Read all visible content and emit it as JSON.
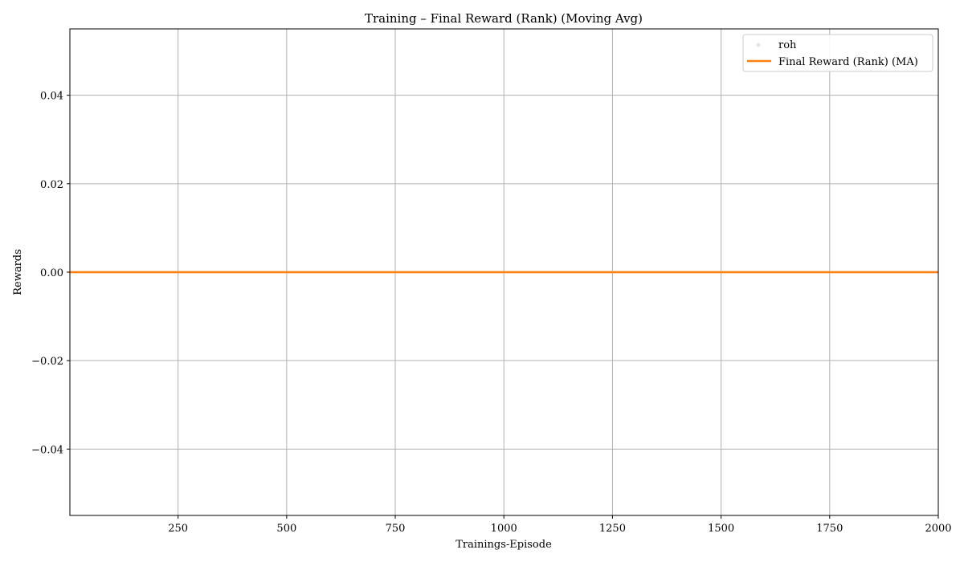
{
  "chart_data": {
    "type": "line",
    "title": "Training – Final Reward (Rank) (Moving Avg)",
    "xlabel": "Trainings-Episode",
    "ylabel": "Rewards",
    "xlim": [
      1,
      2000
    ],
    "ylim": [
      -0.055,
      0.055
    ],
    "x_ticks": [
      250,
      500,
      750,
      1000,
      1250,
      1500,
      1750,
      2000
    ],
    "x_tick_labels": [
      "250",
      "500",
      "750",
      "1000",
      "1250",
      "1500",
      "1750",
      "2000"
    ],
    "y_ticks": [
      -0.04,
      -0.02,
      0.0,
      0.02,
      0.04
    ],
    "y_tick_labels": [
      "−0.04",
      "−0.02",
      "0.00",
      "0.02",
      "0.04"
    ],
    "grid": true,
    "legend_position": "top-right",
    "series": [
      {
        "name": "roh",
        "style": "scatter",
        "color": "#d9e6f2",
        "x": [
          1,
          2000
        ],
        "y": [
          0,
          0
        ]
      },
      {
        "name": "Final Reward (Rank) (MA)",
        "style": "line",
        "color": "#ff7f0e",
        "x": [
          1,
          2000
        ],
        "y": [
          0,
          0
        ]
      }
    ]
  }
}
